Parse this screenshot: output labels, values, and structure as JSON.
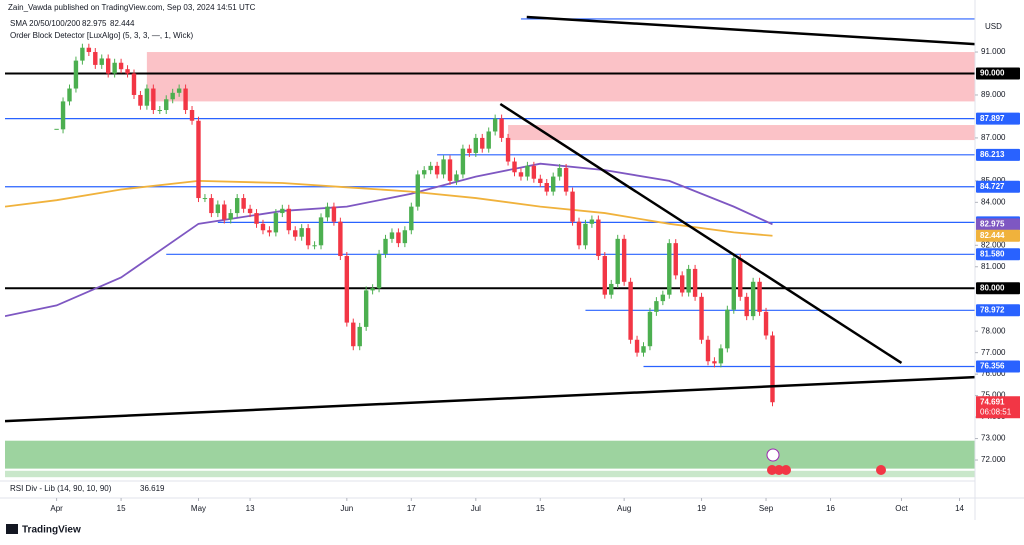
{
  "chart_data": {
    "type": "candlestick",
    "title": "Zain_Vawda published on TradingView.com, Sep 03, 2024 14:51 UTC",
    "sma_legend": "SMA 20/50/100/200",
    "indicator_legend": "Order Block Detector [LuxAlgo] (5, 3, 3, —, 1, Wick)",
    "currency": "USD",
    "rsi_legend": "RSI Div - Lib (14, 90, 10, 90)",
    "rsi_value": "36.619",
    "brand": "TradingView",
    "up_color": "#4caf50",
    "down_color": "#f23645",
    "close": [
      87.4,
      88.7,
      89.3,
      90.6,
      91.2,
      91.0,
      90.4,
      90.7,
      90.0,
      90.5,
      90.2,
      90.0,
      89.0,
      88.5,
      89.3,
      88.3,
      88.3,
      88.8,
      89.1,
      89.3,
      88.3,
      87.8,
      84.2,
      84.2,
      83.5,
      83.9,
      83.2,
      83.5,
      84.2,
      83.7,
      83.5,
      83.0,
      82.7,
      82.6,
      83.5,
      83.7,
      82.7,
      82.4,
      82.8,
      82.0,
      82.0,
      83.3,
      83.8,
      83.1,
      81.5,
      78.4,
      77.3,
      78.2,
      79.9,
      80.0,
      81.6,
      82.3,
      82.6,
      82.1,
      82.7,
      83.8,
      85.3,
      85.5,
      85.7,
      85.3,
      86.0,
      85.0,
      85.3,
      86.5,
      86.3,
      87.0,
      86.5,
      87.3,
      87.9,
      87.0,
      85.9,
      85.4,
      85.2,
      85.7,
      85.1,
      84.9,
      84.5,
      85.2,
      85.6,
      84.5,
      83.1,
      82.0,
      83.0,
      83.2,
      81.5,
      79.7,
      80.2,
      82.3,
      80.3,
      77.6,
      77.0,
      77.3,
      78.9,
      79.4,
      79.7,
      82.1,
      80.6,
      79.8,
      80.9,
      79.6,
      77.6,
      76.6,
      76.5,
      77.2,
      79.0,
      81.4,
      79.6,
      78.7,
      80.3,
      78.9,
      77.8,
      74.691
    ],
    "sma": [
      {
        "color": "#7e57c2",
        "value_label": "82.975",
        "x": [
          -8,
          0,
          10,
          22,
          35,
          45,
          55,
          65,
          75,
          85,
          95,
          105,
          111
        ],
        "values": [
          78.7,
          79.2,
          80.5,
          83.0,
          83.6,
          83.8,
          84.4,
          85.2,
          85.8,
          85.5,
          85.0,
          83.8,
          82.975
        ]
      },
      {
        "color": "#f0b23c",
        "value_label": "82.444",
        "x": [
          -8,
          0,
          10,
          22,
          35,
          45,
          55,
          65,
          75,
          85,
          95,
          105,
          111
        ],
        "values": [
          83.8,
          84.1,
          84.6,
          85.0,
          84.9,
          84.7,
          84.5,
          84.2,
          83.8,
          83.5,
          83.0,
          82.6,
          82.444
        ]
      }
    ],
    "levels": [
      {
        "value": 92.54,
        "color": "#2962ff",
        "x0": 72
      },
      {
        "value": 90,
        "label": "90.000",
        "color": "#000000",
        "x0": -8
      },
      {
        "value": 87.897,
        "label": "87.897",
        "color": "#2962ff",
        "x0": -8
      },
      {
        "value": 86.213,
        "label": "86.213",
        "color": "#2962ff",
        "x0": 59
      },
      {
        "value": 84.727,
        "label": "84.727",
        "color": "#2962ff",
        "x0": -8
      },
      {
        "value": 83.067,
        "label": "83.067",
        "color": "#2962ff",
        "x0": 25
      },
      {
        "value": 81.58,
        "label": "81.580",
        "color": "#2962ff",
        "x0": 17
      },
      {
        "value": 80,
        "label": "80.000",
        "color": "#000000",
        "x0": -8
      },
      {
        "value": 78.972,
        "label": "78.972",
        "color": "#2962ff",
        "x0": 82
      },
      {
        "value": 76.356,
        "label": "76.356",
        "color": "#2962ff",
        "x0": 91
      }
    ],
    "trendlines": [
      {
        "x": [
          72.9,
          142.4
        ],
        "y": [
          92.63,
          91.37
        ]
      },
      {
        "x": [
          68.8,
          131
        ],
        "y": [
          88.58,
          76.52
        ]
      },
      {
        "x": [
          -8,
          142.4
        ],
        "y": [
          73.81,
          75.86
        ]
      }
    ],
    "zones": [
      {
        "x0": 14,
        "x1": 142.4,
        "y0": 88.7,
        "y1": 91.0,
        "color": "rgba(242,54,69,0.3)"
      },
      {
        "x0": 70,
        "x1": 142.4,
        "y0": 86.9,
        "y1": 87.6,
        "color": "rgba(242,54,69,0.3)"
      },
      {
        "x0": -8,
        "x1": 142.4,
        "y0": 71.6,
        "y1": 72.9,
        "color": "rgba(76,175,80,0.55)"
      },
      {
        "x0": -8,
        "x1": 142.4,
        "y0": 71.2,
        "y1": 71.5,
        "color": "rgba(76,175,80,0.3)"
      }
    ],
    "price_label": {
      "value": 74.691,
      "label": "74.691",
      "countdown": "06:08:51",
      "color": "#f23645"
    },
    "xlim": [
      -8,
      142.4
    ],
    "ylim": [
      71.07,
      93.05
    ],
    "xticks": [
      {
        "value": 0,
        "label": "Apr"
      },
      {
        "value": 10,
        "label": "15"
      },
      {
        "value": 22,
        "label": "May"
      },
      {
        "value": 30,
        "label": "13"
      },
      {
        "value": 45,
        "label": "Jun"
      },
      {
        "value": 55,
        "label": "17"
      },
      {
        "value": 65,
        "label": "Jul"
      },
      {
        "value": 75,
        "label": "15"
      },
      {
        "value": 88,
        "label": "Aug"
      },
      {
        "value": 100,
        "label": "19"
      },
      {
        "value": 110,
        "label": "Sep"
      },
      {
        "value": 120,
        "label": "16"
      },
      {
        "value": 131,
        "label": "Oct"
      },
      {
        "value": 140,
        "label": "14"
      }
    ],
    "yticks": [
      {
        "value": 91,
        "label": "91.000"
      },
      {
        "value": 89,
        "label": "89.000"
      },
      {
        "value": 87,
        "label": "87.000"
      },
      {
        "value": 85,
        "label": "85.000"
      },
      {
        "value": 84,
        "label": "84.000"
      },
      {
        "value": 82,
        "label": "82.000"
      },
      {
        "value": 81,
        "label": "81.000"
      },
      {
        "value": 78,
        "label": "78.000"
      },
      {
        "value": 77,
        "label": "77.000"
      },
      {
        "value": 76,
        "label": "76.000"
      },
      {
        "value": 75,
        "label": "75.000"
      },
      {
        "value": 74,
        "label": "74.000"
      },
      {
        "value": 73,
        "label": "73.000"
      },
      {
        "value": 72,
        "label": "72.000"
      }
    ]
  }
}
